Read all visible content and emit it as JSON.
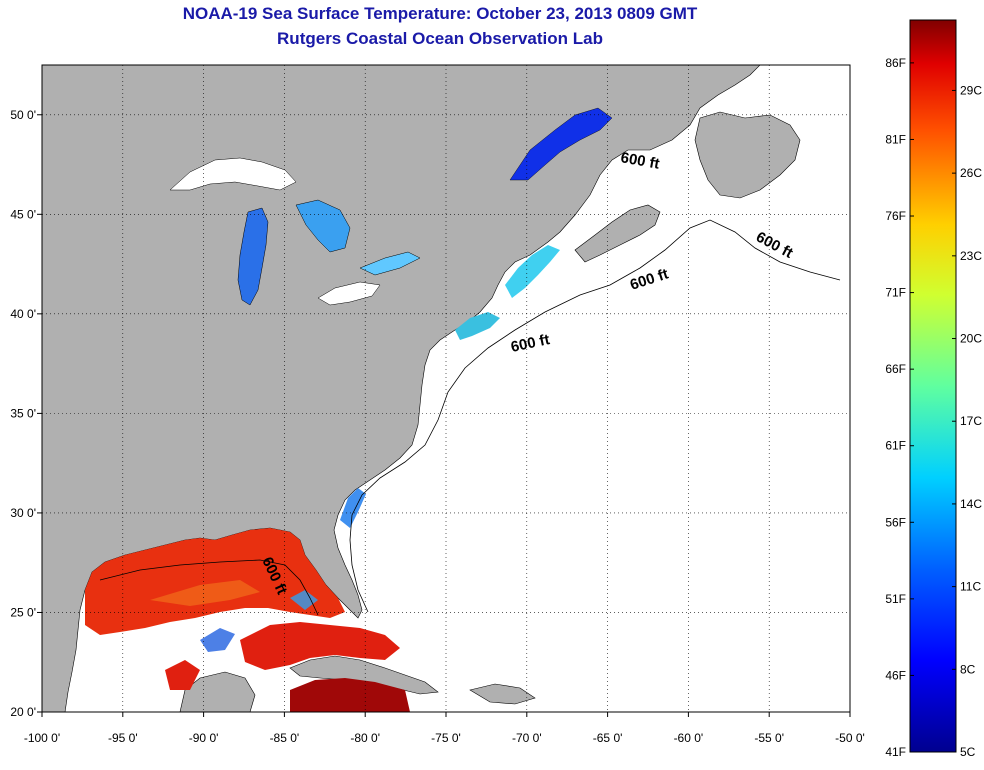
{
  "title": {
    "line1": "NOAA-19 Sea Surface Temperature:  October 23, 2013 0809 GMT",
    "line2": "Rutgers Coastal Ocean Observation Lab"
  },
  "map": {
    "lon_range": [
      -100,
      -50
    ],
    "lat_range": [
      20,
      52.5
    ],
    "lon_ticks": [
      "-100 0'",
      "-95 0'",
      "-90 0'",
      "-85 0'",
      "-80 0'",
      "-75 0'",
      "-70 0'",
      "-65 0'",
      "-60 0'",
      "-55 0'",
      "-50 0'"
    ],
    "lat_ticks": [
      "20 0'",
      "25 0'",
      "30 0'",
      "35 0'",
      "40 0'",
      "45 0'",
      "50 0'"
    ],
    "isobath_labels": [
      "600 ft",
      "600 ft",
      "600 ft",
      "600 ft",
      "600 ft"
    ],
    "land_color": "#b0b0b0",
    "ocean_nodata_color": "#ffffff",
    "grid": "dotted"
  },
  "colorbar": {
    "fahrenheit_labels": [
      "86F",
      "81F",
      "76F",
      "71F",
      "66F",
      "61F",
      "56F",
      "51F",
      "46F",
      "41F"
    ],
    "celsius_labels": [
      "29C",
      "26C",
      "23C",
      "20C",
      "17C",
      "14C",
      "11C",
      "8C",
      "5C"
    ],
    "colormap": "jet",
    "colors": [
      "#00008f",
      "#0000ff",
      "#0080ff",
      "#00ffff",
      "#80ff80",
      "#ffff00",
      "#ff8000",
      "#ff0000",
      "#800000"
    ]
  }
}
